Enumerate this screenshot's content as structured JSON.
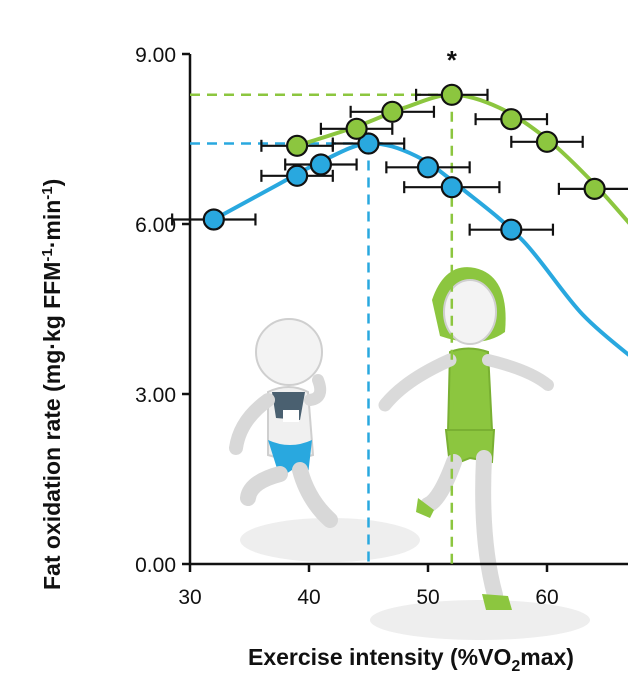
{
  "chart_data": {
    "type": "line",
    "xlabel_main": "Exercise intensity (%VO",
    "xlabel_sub": "2",
    "xlabel_tail": "max)",
    "ylabel": "Fat oxidation rate (mg·kg FFM",
    "ylabel_sup1": "-1",
    "ylabel_mid": "·min",
    "ylabel_sup2": "-1",
    "ylabel_end": ")",
    "x_ticks": [
      "30",
      "40",
      "50",
      "60"
    ],
    "y_ticks": [
      "0.00",
      "3.00",
      "6.00",
      "9.00"
    ],
    "x_tick_values": [
      30,
      40,
      50,
      60
    ],
    "y_tick_values": [
      0,
      3,
      6,
      9
    ],
    "xlim": [
      30,
      68
    ],
    "ylim": [
      0,
      9
    ],
    "significance_marker": "*",
    "series": [
      {
        "color": "#29a8df",
        "points": [
          {
            "x": 32,
            "y": 6.08,
            "xerr": 3.5
          },
          {
            "x": 39,
            "y": 6.85,
            "xerr": 3
          },
          {
            "x": 41,
            "y": 7.05,
            "xerr": 3
          },
          {
            "x": 45,
            "y": 7.42,
            "xerr": 3
          },
          {
            "x": 50,
            "y": 7.0,
            "xerr": 3.5
          },
          {
            "x": 52,
            "y": 6.65,
            "xerr": 4
          },
          {
            "x": 57,
            "y": 5.9,
            "xerr": 3.5
          }
        ],
        "curve": [
          [
            32,
            6.08
          ],
          [
            37,
            6.65
          ],
          [
            41,
            7.1
          ],
          [
            45,
            7.42
          ],
          [
            49,
            7.2
          ],
          [
            53,
            6.6
          ],
          [
            58,
            5.7
          ],
          [
            63,
            4.4
          ],
          [
            68,
            3.5
          ]
        ],
        "peak": {
          "x": 45,
          "y": 7.42
        }
      },
      {
        "color": "#8cc63f",
        "points": [
          {
            "x": 39,
            "y": 7.38,
            "xerr": 3
          },
          {
            "x": 44,
            "y": 7.68,
            "xerr": 3
          },
          {
            "x": 47,
            "y": 7.98,
            "xerr": 3.5
          },
          {
            "x": 52,
            "y": 8.28,
            "xerr": 3
          },
          {
            "x": 57,
            "y": 7.85,
            "xerr": 3
          },
          {
            "x": 60,
            "y": 7.45,
            "xerr": 3
          },
          {
            "x": 64,
            "y": 6.62,
            "xerr": 3
          }
        ],
        "curve": [
          [
            39,
            7.38
          ],
          [
            44,
            7.72
          ],
          [
            48,
            8.05
          ],
          [
            52,
            8.28
          ],
          [
            56,
            8.05
          ],
          [
            60,
            7.5
          ],
          [
            64,
            6.7
          ],
          [
            68,
            5.75
          ]
        ],
        "peak": {
          "x": 52,
          "y": 8.28
        }
      }
    ]
  },
  "illustration": {
    "runner_blue_icon": "male-runner-figure",
    "runner_green_icon": "female-runner-figure"
  }
}
